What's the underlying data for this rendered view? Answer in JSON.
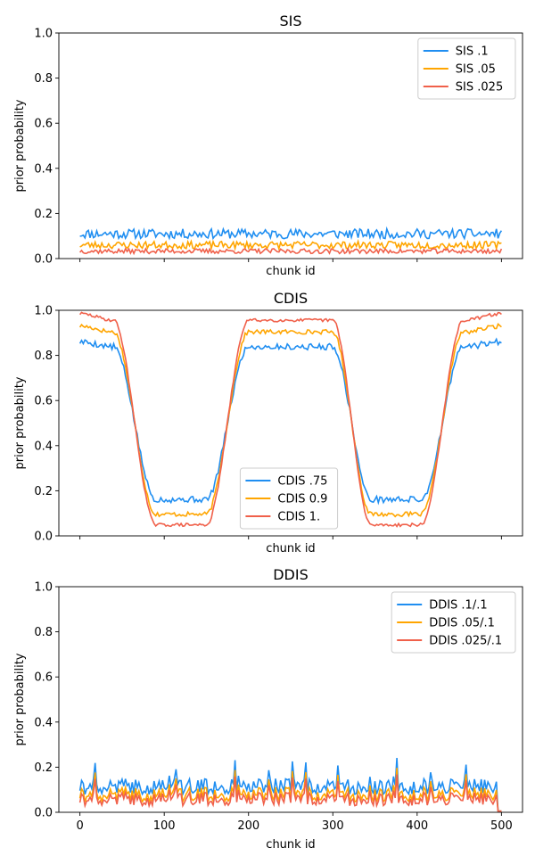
{
  "chart_data": [
    {
      "type": "line",
      "title": "SIS",
      "xlabel": "chunk id",
      "ylabel": "prior probability",
      "xlim": [
        -25,
        525
      ],
      "ylim": [
        0,
        1.0
      ],
      "xticks": [
        0,
        100,
        200,
        300,
        400,
        500
      ],
      "show_xtick_labels": false,
      "yticks": [
        "0.0",
        "0.2",
        "0.4",
        "0.6",
        "0.8",
        "1.0"
      ],
      "legend_position": "top-right",
      "series": [
        {
          "name": "SIS .1",
          "color": "#1f8ef1",
          "kind": "flat",
          "level": 0.11,
          "noise": 0.012,
          "seed": 11
        },
        {
          "name": "SIS .05",
          "color": "#ffa500",
          "kind": "flat",
          "level": 0.06,
          "noise": 0.009,
          "seed": 23
        },
        {
          "name": "SIS .025",
          "color": "#f0604a",
          "kind": "flat",
          "level": 0.033,
          "noise": 0.006,
          "seed": 37
        }
      ]
    },
    {
      "type": "line",
      "title": "CDIS",
      "xlabel": "chunk id",
      "ylabel": "prior probability",
      "xlim": [
        -25,
        525
      ],
      "ylim": [
        0,
        1.0
      ],
      "xticks": [
        0,
        100,
        200,
        300,
        400,
        500
      ],
      "show_xtick_labels": false,
      "yticks": [
        "0.0",
        "0.2",
        "0.4",
        "0.6",
        "0.8",
        "1.0"
      ],
      "legend_position": "lower-center",
      "series": [
        {
          "name": "CDIS .75",
          "color": "#1f8ef1",
          "kind": "wave",
          "low": 0.14,
          "high": 0.86,
          "noise": 0.014,
          "seed": 5
        },
        {
          "name": "CDIS 0.9",
          "color": "#ffa500",
          "kind": "wave",
          "low": 0.07,
          "high": 0.93,
          "noise": 0.01,
          "seed": 17
        },
        {
          "name": "CDIS 1.",
          "color": "#f0604a",
          "kind": "wave",
          "low": 0.02,
          "high": 0.985,
          "noise": 0.007,
          "seed": 29
        }
      ]
    },
    {
      "type": "line",
      "title": "DDIS",
      "xlabel": "chunk id",
      "ylabel": "prior probability",
      "xlim": [
        -25,
        525
      ],
      "ylim": [
        0,
        1.0
      ],
      "xticks": [
        0,
        100,
        200,
        300,
        400,
        500
      ],
      "show_xtick_labels": true,
      "yticks": [
        "0.0",
        "0.2",
        "0.4",
        "0.6",
        "0.8",
        "1.0"
      ],
      "legend_position": "top-right",
      "series": [
        {
          "name": "DDIS .1/.1",
          "color": "#1f8ef1",
          "kind": "spiky",
          "level": 0.11,
          "spike": 0.07,
          "seed": 41
        },
        {
          "name": "DDIS .05/.1",
          "color": "#ffa500",
          "kind": "spiky",
          "level": 0.075,
          "spike": 0.065,
          "seed": 41
        },
        {
          "name": "DDIS .025/.1",
          "color": "#f0604a",
          "kind": "spiky",
          "level": 0.055,
          "spike": 0.06,
          "seed": 41
        }
      ]
    }
  ]
}
